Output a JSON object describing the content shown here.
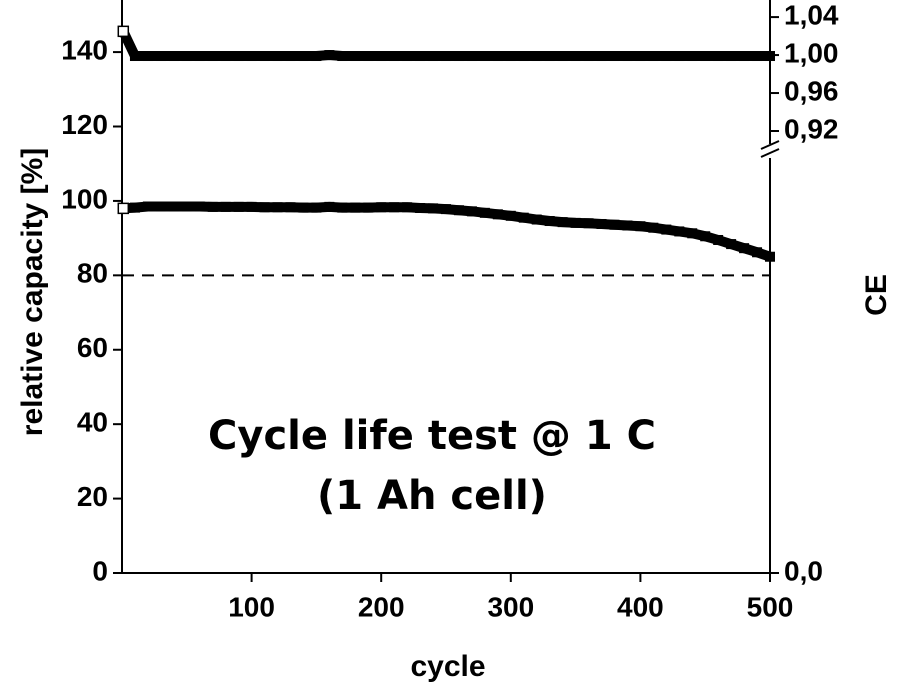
{
  "chart_data": {
    "type": "scatter",
    "annotations": [
      "Cycle life test @ 1 C",
      "(1 Ah cell)"
    ],
    "xlabel": "cycle",
    "ylabel": "relative capacity [%]",
    "y2label": "CE",
    "x": [
      1,
      10,
      20,
      30,
      40,
      50,
      60,
      70,
      80,
      90,
      100,
      110,
      120,
      130,
      140,
      150,
      160,
      170,
      180,
      190,
      200,
      210,
      220,
      230,
      240,
      250,
      260,
      270,
      280,
      290,
      300,
      310,
      320,
      330,
      340,
      350,
      360,
      370,
      380,
      390,
      400,
      410,
      420,
      430,
      440,
      450,
      460,
      470,
      480,
      490,
      500
    ],
    "series": [
      {
        "name": "relative capacity",
        "color": "#000000",
        "marker": "square",
        "values": [
          98,
          98.2,
          98.5,
          98.5,
          98.5,
          98.5,
          98.5,
          98.4,
          98.4,
          98.4,
          98.4,
          98.3,
          98.3,
          98.3,
          98.2,
          98.2,
          98.4,
          98.2,
          98.2,
          98.2,
          98.3,
          98.3,
          98.3,
          98.1,
          98,
          97.8,
          97.5,
          97.2,
          96.8,
          96.4,
          96,
          95.5,
          95,
          94.6,
          94.3,
          94.1,
          94,
          93.8,
          93.6,
          93.4,
          93.2,
          92.8,
          92.3,
          91.8,
          91.3,
          90.5,
          89.5,
          88.4,
          87.3,
          86.2,
          85
        ]
      },
      {
        "name": "CE",
        "color": "#000000",
        "marker": "square",
        "axis": "y2",
        "values": [
          1.025,
          0.999,
          0.999,
          0.999,
          0.999,
          0.999,
          0.999,
          0.999,
          0.999,
          0.999,
          0.999,
          0.999,
          0.999,
          0.999,
          0.999,
          0.999,
          1.0,
          0.999,
          0.999,
          0.999,
          0.999,
          0.999,
          0.999,
          0.999,
          0.999,
          0.999,
          0.999,
          0.999,
          0.999,
          0.999,
          0.999,
          0.999,
          0.999,
          0.999,
          0.999,
          0.999,
          0.999,
          0.999,
          0.999,
          0.999,
          0.999,
          0.999,
          0.999,
          0.999,
          0.999,
          0.999,
          0.999,
          0.999,
          0.999,
          0.999,
          0.999
        ]
      }
    ],
    "hlines": [
      {
        "value": 80,
        "style": "dashed"
      }
    ],
    "xlim": [
      0,
      500
    ],
    "xticks": [
      100,
      200,
      300,
      400,
      500
    ],
    "ylim": [
      0,
      154
    ],
    "yticks": [
      0,
      20,
      40,
      60,
      80,
      100,
      120,
      140
    ],
    "y2lim": [
      0.9,
      1.058
    ],
    "y2_break": true,
    "y2ticks": [
      {
        "value": 0,
        "label": "0,0"
      },
      {
        "value": 0.92,
        "label": "0,92"
      },
      {
        "value": 0.96,
        "label": "0,96"
      },
      {
        "value": 1.0,
        "label": "1,00"
      },
      {
        "value": 1.04,
        "label": "1,04"
      }
    ]
  }
}
